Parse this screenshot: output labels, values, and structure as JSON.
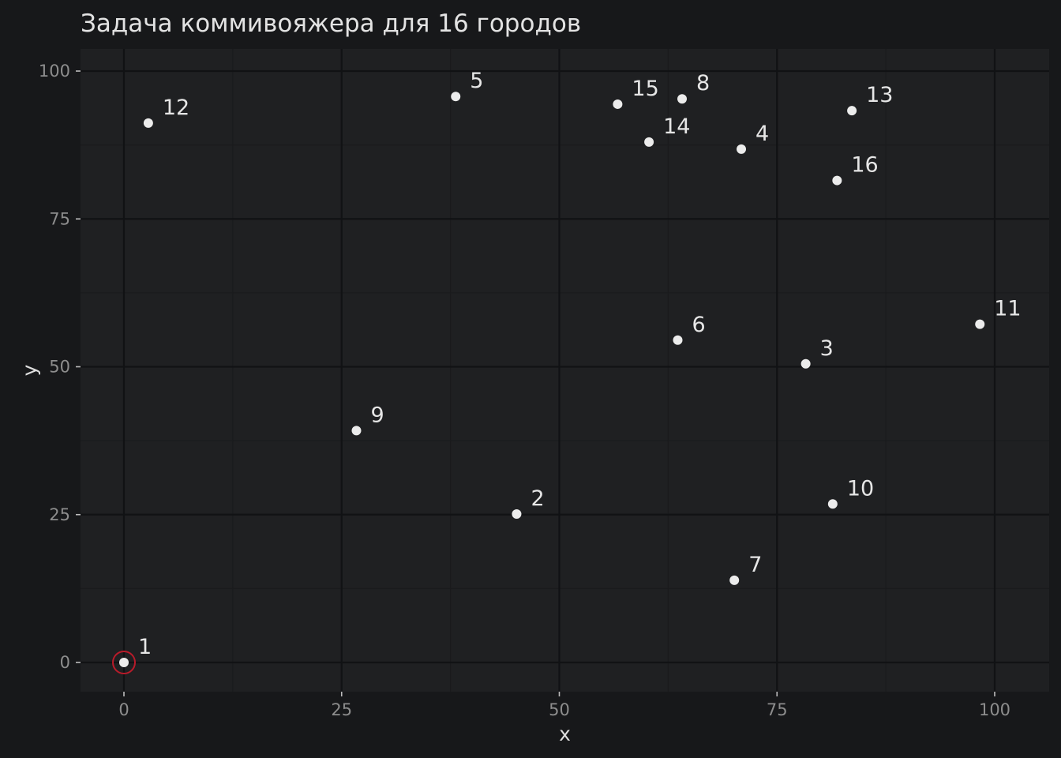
{
  "chart_data": {
    "type": "scatter",
    "title": "Задача коммивояжера для 16 городов",
    "xlabel": "x",
    "ylabel": "y",
    "xlim": [
      -5,
      106
    ],
    "ylim": [
      -5,
      104
    ],
    "x_ticks": [
      0,
      25,
      50,
      75,
      100
    ],
    "y_ticks": [
      0,
      25,
      50,
      75,
      100
    ],
    "x_tick_labels": [
      "0",
      "25",
      "50",
      "75",
      "100"
    ],
    "y_tick_labels": [
      "0",
      "25",
      "50",
      "75",
      "100"
    ],
    "grid": true,
    "start_city": "1",
    "start_ring_color": "#b81b2a",
    "point_color": "#ececec",
    "points": [
      {
        "label": "1",
        "x": 0.0,
        "y": 0.0
      },
      {
        "label": "2",
        "x": 45.1,
        "y": 25.1
      },
      {
        "label": "3",
        "x": 78.3,
        "y": 50.5
      },
      {
        "label": "4",
        "x": 70.9,
        "y": 86.8
      },
      {
        "label": "5",
        "x": 38.1,
        "y": 95.7
      },
      {
        "label": "6",
        "x": 63.6,
        "y": 54.5
      },
      {
        "label": "7",
        "x": 70.1,
        "y": 13.9
      },
      {
        "label": "8",
        "x": 64.1,
        "y": 95.3
      },
      {
        "label": "9",
        "x": 26.7,
        "y": 39.2
      },
      {
        "label": "10",
        "x": 81.4,
        "y": 26.8
      },
      {
        "label": "11",
        "x": 98.3,
        "y": 57.2
      },
      {
        "label": "12",
        "x": 2.8,
        "y": 91.2
      },
      {
        "label": "13",
        "x": 83.6,
        "y": 93.3
      },
      {
        "label": "14",
        "x": 60.3,
        "y": 88.0
      },
      {
        "label": "15",
        "x": 56.7,
        "y": 94.4
      },
      {
        "label": "16",
        "x": 81.9,
        "y": 81.5
      }
    ]
  }
}
